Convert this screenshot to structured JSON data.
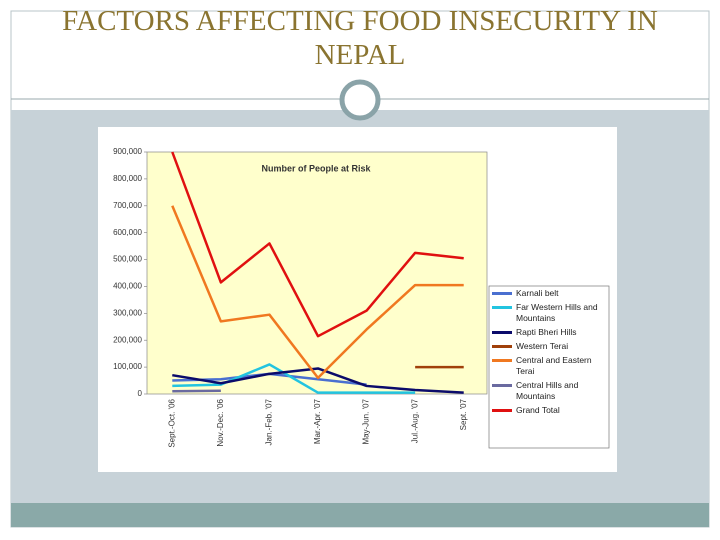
{
  "slide": {
    "title": "FACTORS AFFECTING FOOD INSECURITY IN NEPAL"
  },
  "chart_data": {
    "type": "line",
    "title": "Number of People at Risk",
    "categories": [
      "Sept.-Oct. '06",
      "Nov.-Dec. '06",
      "Jan.-Feb. '07",
      "Mar.-Apr. '07",
      "May-Jun. '07",
      "Jul.-Aug. '07",
      "Sept. '07"
    ],
    "series": [
      {
        "name": "Karnali belt",
        "color": "#4a6fd0",
        "values": [
          50000,
          55000,
          75000,
          55000,
          35000,
          null,
          null
        ]
      },
      {
        "name": "Far Western Hills and Mountains",
        "color": "#22c4e0",
        "values": [
          30000,
          35000,
          110000,
          5000,
          5000,
          5000,
          null
        ]
      },
      {
        "name": "Rapti Bheri Hills",
        "color": "#0b0b6b",
        "values": [
          70000,
          40000,
          75000,
          95000,
          30000,
          15000,
          5000
        ]
      },
      {
        "name": "Western Terai",
        "color": "#a0400a",
        "values": [
          null,
          null,
          null,
          null,
          null,
          100000,
          100000
        ]
      },
      {
        "name": "Central and Eastern Terai",
        "color": "#f07820",
        "values": [
          700000,
          270000,
          295000,
          60000,
          240000,
          405000,
          405000
        ]
      },
      {
        "name": "Central Hills and Mountains",
        "color": "#6a6aa0",
        "values": [
          10000,
          12000,
          null,
          null,
          null,
          null,
          null
        ]
      },
      {
        "name": "Grand Total",
        "color": "#e01010",
        "values": [
          900000,
          415000,
          560000,
          215000,
          310000,
          525000,
          505000
        ]
      }
    ],
    "ylim": [
      0,
      900000
    ],
    "yticks": [
      0,
      {
        "value": 100000,
        "label": "100,000"
      },
      {
        "value": 200000,
        "label": "200,000"
      },
      {
        "value": 300000,
        "label": "300,000"
      },
      {
        "value": 400000,
        "label": "400,000"
      },
      {
        "value": 500000,
        "label": "500,000"
      },
      {
        "value": 600000,
        "label": "600,000"
      },
      {
        "value": 700000,
        "label": "700,000"
      },
      {
        "value": 800000,
        "label": "800,000"
      },
      {
        "value": 900000,
        "label": "900,000"
      }
    ],
    "grid": false
  }
}
